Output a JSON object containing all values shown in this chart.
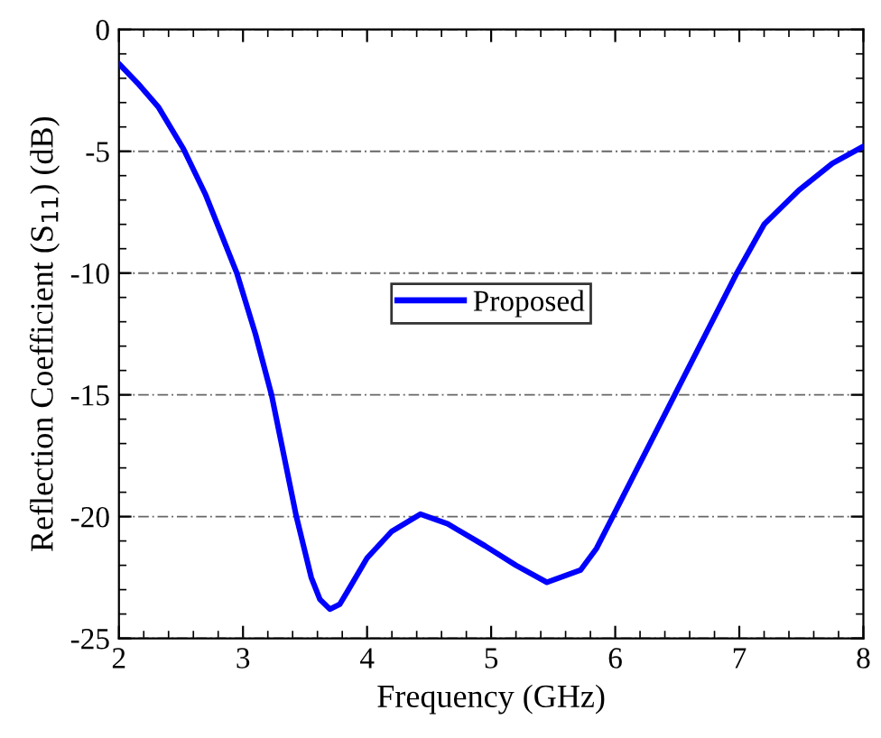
{
  "chart_data": {
    "type": "line",
    "xlabel": "Frequency (GHz)",
    "ylabel": "Reflection Coefficient (S$_{11}$) (dB)",
    "xlim": [
      2,
      8
    ],
    "ylim": [
      -25,
      0
    ],
    "xticks": [
      2,
      3,
      4,
      5,
      6,
      7,
      8
    ],
    "yticks": [
      -25,
      -20,
      -15,
      -10,
      -5,
      0
    ],
    "grid": "y",
    "legend": "center",
    "line_style": "solid",
    "marker": "none",
    "series": [
      {
        "name": "Proposed",
        "color": "#0000ff",
        "x": [
          2,
          2.15,
          2.32,
          2.52,
          2.7,
          2.95,
          3.1,
          3.23,
          3.35,
          3.43,
          3.55,
          3.62,
          3.7,
          3.78,
          3.85,
          4.0,
          4.2,
          4.43,
          4.65,
          4.95,
          5.2,
          5.45,
          5.72,
          5.85,
          5.98,
          6.2,
          6.48,
          6.73,
          6.98,
          7.2,
          7.48,
          7.75,
          8
        ],
        "values": [
          -1.4,
          -2.2,
          -3.2,
          -4.9,
          -6.8,
          -10,
          -12.5,
          -15,
          -18,
          -20,
          -22.5,
          -23.4,
          -23.8,
          -23.6,
          -23.0,
          -21.7,
          -20.6,
          -19.9,
          -20.3,
          -21.2,
          -22.0,
          -22.7,
          -22.2,
          -21.3,
          -20,
          -17.8,
          -15,
          -12.5,
          -10,
          -8.0,
          -6.6,
          -5.5,
          -4.8
        ]
      }
    ]
  }
}
